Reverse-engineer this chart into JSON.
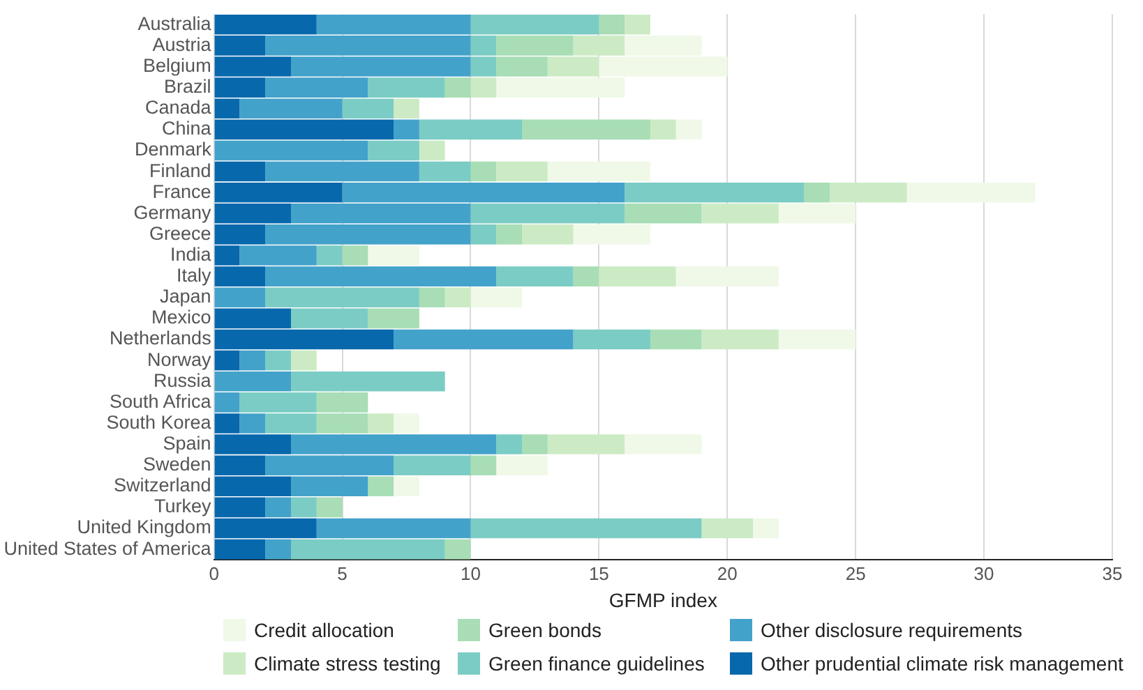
{
  "chart_data": {
    "type": "bar",
    "orientation": "horizontal",
    "stacked": true,
    "xlabel": "GFMP index",
    "categories": [
      "Australia",
      "Austria",
      "Belgium",
      "Brazil",
      "Canada",
      "China",
      "Denmark",
      "Finland",
      "France",
      "Germany",
      "Greece",
      "India",
      "Italy",
      "Japan",
      "Mexico",
      "Netherlands",
      "Norway",
      "Russia",
      "South Africa",
      "South Korea",
      "Spain",
      "Sweden",
      "Switzerland",
      "Turkey",
      "United Kingdom",
      "United States of America"
    ],
    "series": [
      {
        "name": "Other prudential climate risk management",
        "color": "#0868ac",
        "values": [
          4,
          2,
          3,
          2,
          1,
          7,
          0,
          2,
          5,
          3,
          2,
          1,
          2,
          0,
          3,
          7,
          1,
          0,
          0,
          1,
          3,
          2,
          3,
          2,
          4,
          2
        ]
      },
      {
        "name": "Other disclosure requirements",
        "color": "#43a2ca",
        "values": [
          6,
          8,
          7,
          4,
          4,
          1,
          6,
          6,
          11,
          7,
          8,
          3,
          9,
          2,
          0,
          7,
          1,
          3,
          1,
          1,
          8,
          5,
          3,
          1,
          6,
          1
        ]
      },
      {
        "name": "Green finance guidelines",
        "color": "#7bccc4",
        "values": [
          5,
          1,
          1,
          3,
          2,
          4,
          2,
          2,
          7,
          6,
          1,
          1,
          3,
          6,
          3,
          3,
          1,
          6,
          3,
          2,
          1,
          3,
          0,
          1,
          9,
          6
        ]
      },
      {
        "name": "Green bonds",
        "color": "#a8ddb5",
        "values": [
          1,
          3,
          2,
          1,
          0,
          5,
          0,
          1,
          1,
          3,
          1,
          1,
          1,
          1,
          2,
          2,
          0,
          0,
          2,
          2,
          1,
          1,
          1,
          1,
          0,
          1
        ]
      },
      {
        "name": "Climate stress testing",
        "color": "#ccebc5",
        "values": [
          1,
          2,
          2,
          1,
          1,
          1,
          1,
          2,
          3,
          3,
          2,
          0,
          3,
          1,
          0,
          3,
          1,
          0,
          0,
          1,
          3,
          0,
          0,
          0,
          2,
          0
        ]
      },
      {
        "name": "Credit allocation",
        "color": "#f0f9e8",
        "values": [
          0,
          3,
          5,
          5,
          0,
          1,
          0,
          4,
          5,
          3,
          3,
          2,
          4,
          2,
          0,
          3,
          0,
          0,
          0,
          1,
          3,
          2,
          1,
          0,
          1,
          0
        ]
      }
    ],
    "xlim": [
      0,
      35
    ],
    "xticks": [
      0,
      5,
      10,
      15,
      20,
      25,
      30,
      35
    ],
    "grid": "x",
    "legend": "bottom"
  }
}
